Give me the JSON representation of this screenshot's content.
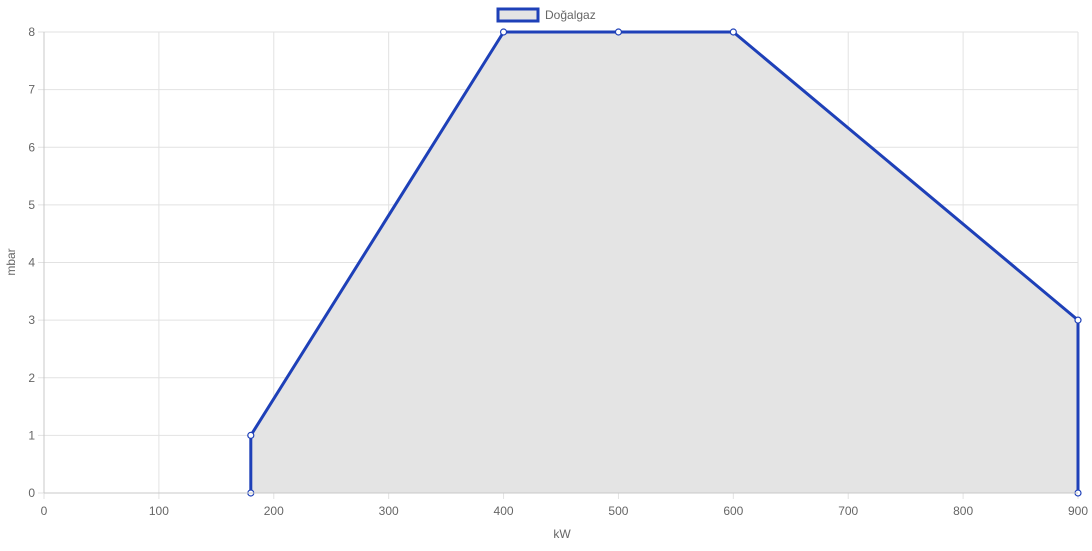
{
  "chart_data": {
    "type": "area",
    "xlabel": "kW",
    "ylabel": "mbar",
    "xlim": [
      0,
      900
    ],
    "ylim": [
      0,
      8
    ],
    "x_ticks": [
      "0",
      "100",
      "200",
      "300",
      "400",
      "500",
      "600",
      "700",
      "800",
      "900"
    ],
    "y_ticks": [
      "0",
      "1",
      "2",
      "3",
      "4",
      "5",
      "6",
      "7",
      "8"
    ],
    "grid": true,
    "legend": "top-center",
    "series": [
      {
        "name": "Doğalgaz",
        "color": "#1e40b8",
        "fill": "#e4e4e4",
        "points": [
          {
            "x": 180,
            "y": 0
          },
          {
            "x": 180,
            "y": 1
          },
          {
            "x": 400,
            "y": 8
          },
          {
            "x": 500,
            "y": 8
          },
          {
            "x": 600,
            "y": 8
          },
          {
            "x": 900,
            "y": 3
          },
          {
            "x": 900,
            "y": 0
          }
        ]
      }
    ]
  }
}
